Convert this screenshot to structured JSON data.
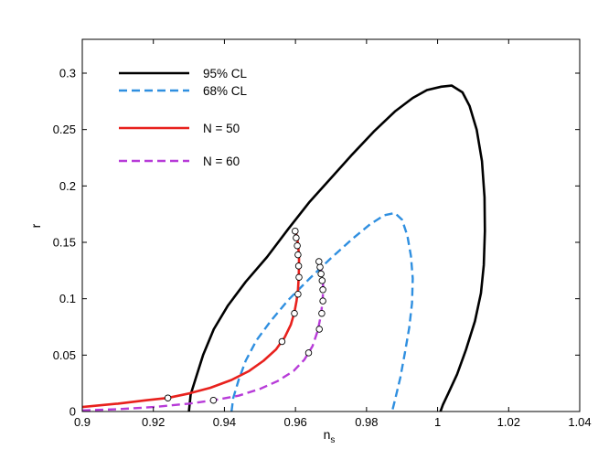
{
  "chart_data": {
    "type": "line",
    "title": "",
    "xlabel": "n",
    "xlabel_subscript": "s",
    "ylabel": "r",
    "xlim": [
      0.9,
      1.04
    ],
    "ylim": [
      0,
      0.33
    ],
    "xticks": [
      0.9,
      0.92,
      0.94,
      0.96,
      0.98,
      1,
      1.02,
      1.04
    ],
    "xtick_labels": [
      "0.9",
      "0.92",
      "0.94",
      "0.96",
      "0.98",
      "1",
      "1.02",
      "1.04"
    ],
    "yticks": [
      0,
      0.05,
      0.1,
      0.15,
      0.2,
      0.25,
      0.3
    ],
    "ytick_labels": [
      "0",
      "0.05",
      "0.1",
      "0.15",
      "0.2",
      "0.25",
      "0.3"
    ],
    "grid": false,
    "legend_position": "top-left",
    "series": [
      {
        "name": "95% CL",
        "color": "#000000",
        "style": "solid",
        "width": 2.6,
        "x": [
          0.93,
          0.9305,
          0.932,
          0.934,
          0.937,
          0.941,
          0.946,
          0.952,
          0.958,
          0.964,
          0.97,
          0.976,
          0.982,
          0.988,
          0.993,
          0.997,
          1.001,
          1.004,
          1.007,
          1.009,
          1.011,
          1.0125,
          1.0132,
          1.0133,
          1.013,
          1.0122,
          1.0105,
          1.008,
          1.0055,
          1.003,
          1.0015,
          1.0008
        ],
        "y": [
          0,
          0.015,
          0.03,
          0.05,
          0.073,
          0.094,
          0.115,
          0.137,
          0.162,
          0.186,
          0.207,
          0.228,
          0.248,
          0.266,
          0.278,
          0.285,
          0.288,
          0.289,
          0.283,
          0.271,
          0.25,
          0.222,
          0.19,
          0.16,
          0.13,
          0.105,
          0.08,
          0.055,
          0.033,
          0.016,
          0.006,
          0
        ]
      },
      {
        "name": "68% CL",
        "color": "#2f8fe0",
        "style": "dashed",
        "width": 2.4,
        "x": [
          0.942,
          0.9425,
          0.944,
          0.946,
          0.949,
          0.953,
          0.958,
          0.964,
          0.97,
          0.976,
          0.981,
          0.985,
          0.988,
          0.99,
          0.9915,
          0.9925,
          0.993,
          0.9928,
          0.992,
          0.9908,
          0.9895,
          0.988,
          0.9872
        ],
        "y": [
          0,
          0.012,
          0.028,
          0.045,
          0.063,
          0.08,
          0.099,
          0.118,
          0.136,
          0.153,
          0.166,
          0.174,
          0.176,
          0.17,
          0.156,
          0.138,
          0.118,
          0.096,
          0.074,
          0.052,
          0.03,
          0.01,
          0
        ]
      },
      {
        "name": "N = 50",
        "color": "#e8211d",
        "style": "solid",
        "width": 2.6,
        "x": [
          0.9,
          0.91,
          0.918,
          0.924,
          0.93,
          0.936,
          0.942,
          0.947,
          0.951,
          0.9545,
          0.957,
          0.9587,
          0.9597,
          0.9603,
          0.9607,
          0.9609,
          0.961,
          0.961,
          0.9609,
          0.9607,
          0.9605,
          0.9603,
          0.9601,
          0.96
        ],
        "y": [
          0.004,
          0.007,
          0.01,
          0.012,
          0.016,
          0.021,
          0.028,
          0.036,
          0.045,
          0.055,
          0.066,
          0.077,
          0.088,
          0.098,
          0.108,
          0.118,
          0.128,
          0.135,
          0.142,
          0.148,
          0.153,
          0.156,
          0.159,
          0.161
        ]
      },
      {
        "name": "N = 60",
        "color": "#b73bd8",
        "style": "dashed",
        "width": 2.4,
        "x": [
          0.9,
          0.91,
          0.92,
          0.93,
          0.937,
          0.944,
          0.95,
          0.955,
          0.9595,
          0.9625,
          0.9648,
          0.9663,
          0.9672,
          0.9676,
          0.9678,
          0.9677,
          0.9674,
          0.967,
          0.9667,
          0.9665
        ],
        "y": [
          0.001,
          0.002,
          0.004,
          0.007,
          0.01,
          0.014,
          0.02,
          0.027,
          0.036,
          0.046,
          0.058,
          0.072,
          0.086,
          0.098,
          0.108,
          0.116,
          0.122,
          0.128,
          0.131,
          0.133
        ]
      }
    ],
    "markers": {
      "fill": "#ffffff",
      "edge": "#000000",
      "N50": [
        {
          "x": 0.9241,
          "y": 0.012
        },
        {
          "x": 0.9562,
          "y": 0.062
        },
        {
          "x": 0.9597,
          "y": 0.087
        },
        {
          "x": 0.9607,
          "y": 0.104
        },
        {
          "x": 0.961,
          "y": 0.119
        },
        {
          "x": 0.9609,
          "y": 0.129
        },
        {
          "x": 0.9607,
          "y": 0.139
        },
        {
          "x": 0.9605,
          "y": 0.147
        },
        {
          "x": 0.9602,
          "y": 0.154
        },
        {
          "x": 0.9599,
          "y": 0.16
        }
      ],
      "N60": [
        {
          "x": 0.9369,
          "y": 0.01
        },
        {
          "x": 0.9637,
          "y": 0.052
        },
        {
          "x": 0.9667,
          "y": 0.073
        },
        {
          "x": 0.9674,
          "y": 0.087
        },
        {
          "x": 0.9677,
          "y": 0.098
        },
        {
          "x": 0.9677,
          "y": 0.108
        },
        {
          "x": 0.9675,
          "y": 0.116
        },
        {
          "x": 0.9672,
          "y": 0.122
        },
        {
          "x": 0.9669,
          "y": 0.128
        },
        {
          "x": 0.9666,
          "y": 0.133
        }
      ]
    }
  }
}
